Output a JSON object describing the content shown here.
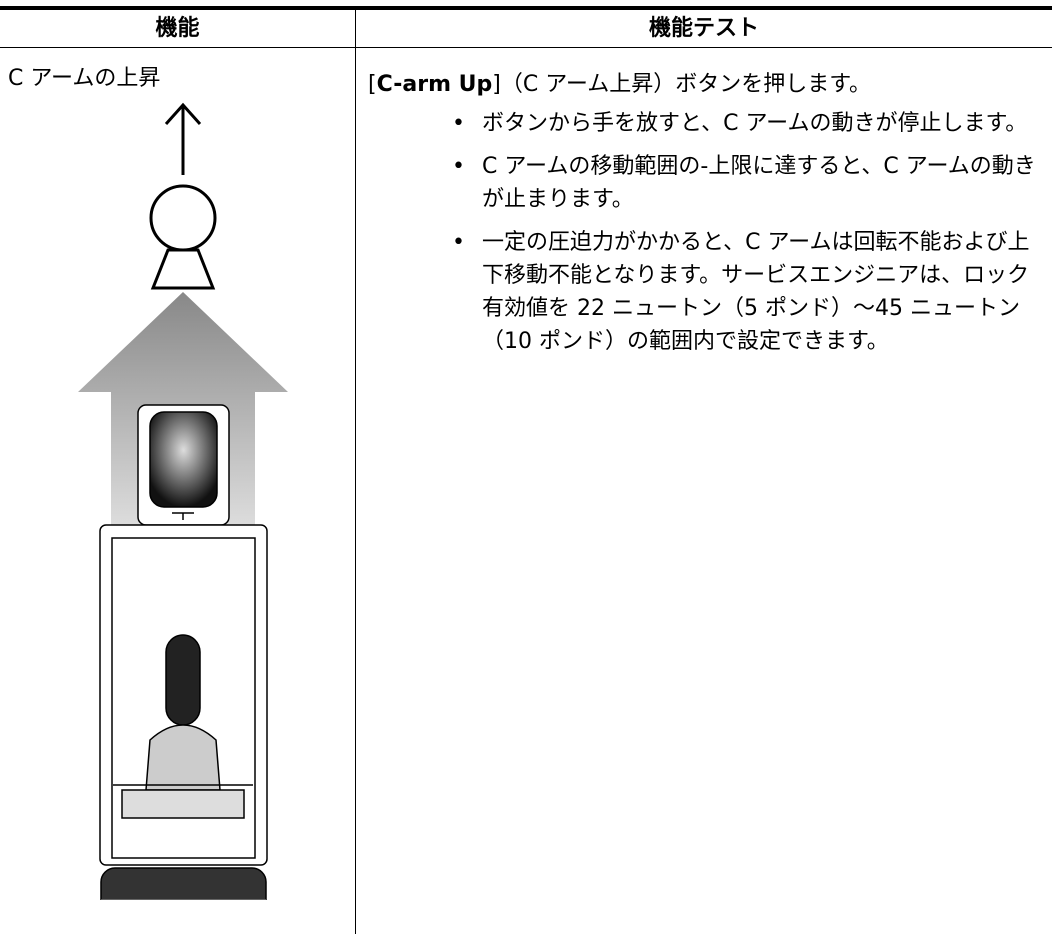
{
  "table": {
    "header": [
      "機能",
      "機能テスト"
    ],
    "rows": [
      {
        "feature": "C アームの上昇",
        "test": {
          "intro": [
            "[",
            "C-arm Up",
            "]（C アーム上昇）ボタンを押します。"
          ],
          "bullets": [
            "ボタンから手を放すと、C アームの動きが停止します。",
            "C アームの移動範囲の-上限に達すると、C アームの動きが止まります。",
            "一定の圧迫力がかかると、C アームは回転不能および上下移動不能となります。サービスエンジニアは、ロック有効値を 22 ニュートン（5 ポンド）〜45 ニュートン（10 ポンド）の範囲内で設定できます。"
          ]
        }
      }
    ]
  }
}
